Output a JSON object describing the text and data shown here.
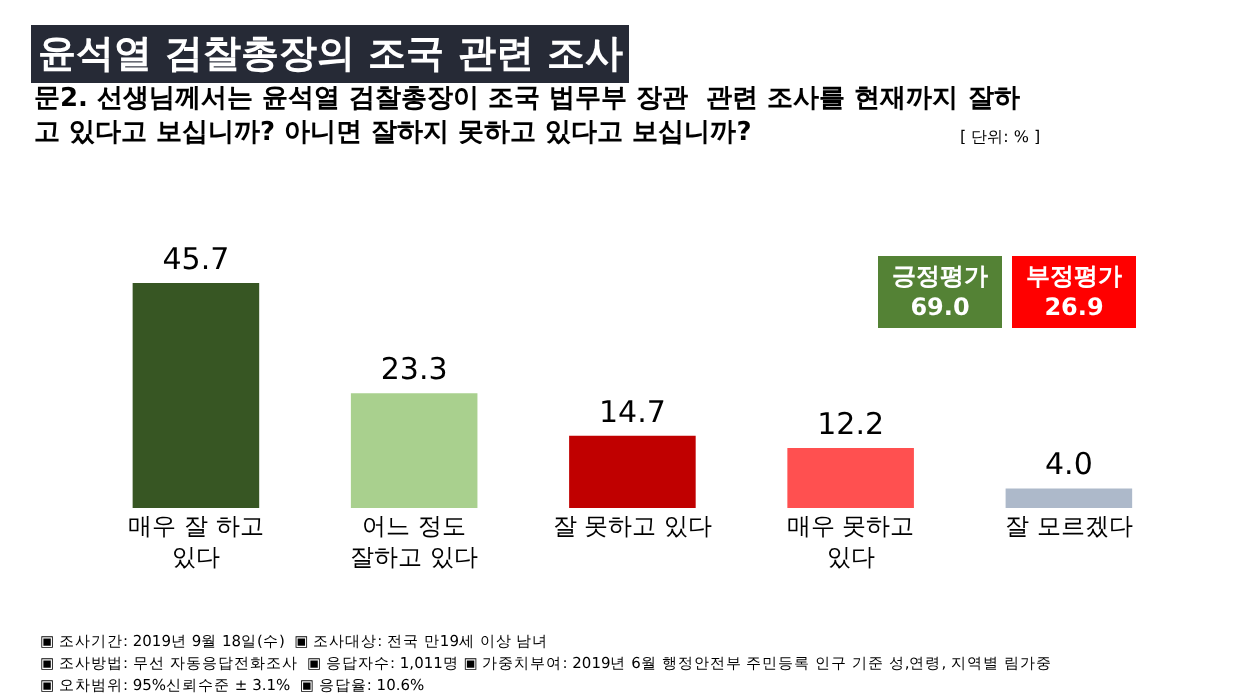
{
  "chart_data": {
    "type": "bar",
    "title": "윤석열 검찰총장의 조국 관련 조사",
    "subtitle": "문2. 선생님께서는 윤석열 검찰총장이 조국 법무부 장관  관련 조사를 현재까지 잘하\n고 있다고 보십니까? 아니면 잘하지 못하고 있다고 보십니까?",
    "categories": [
      "매우 잘 하고\n있다",
      "어느 정도\n잘하고 있다",
      "잘 못하고 있다",
      "매우 못하고\n있다",
      "잘 모르겠다"
    ],
    "values": [
      45.7,
      23.3,
      14.7,
      12.2,
      4.0
    ],
    "colors": [
      "#375623",
      "#a9d08e",
      "#c00000",
      "#ff5050",
      "#adb9ca"
    ],
    "value_labels": [
      "45.7",
      "23.3",
      "14.7",
      "12.2",
      "4.0"
    ],
    "legend": false,
    "annotations": [
      "긍정평가\n69.0",
      "부정평가\n26.9",
      "[ 단위: % ]",
      "▣ 조사기간: 2019년 9월 18일(수)  ▣ 조사대상: 전국 만19세 이상 남녀",
      "▣ 조사방법: 무선 자동응답전화조사  ▣ 응답자수: 1,011명 ▣ 가중치부여: 2019년 6월 행정안전부 주민등록 인구 기준 성,연령, 지역별 림가중",
      "▣ 오차범위: 95%신뢰수준 ± 3.1%  ▣ 응답율: 10.6%"
    ]
  }
}
